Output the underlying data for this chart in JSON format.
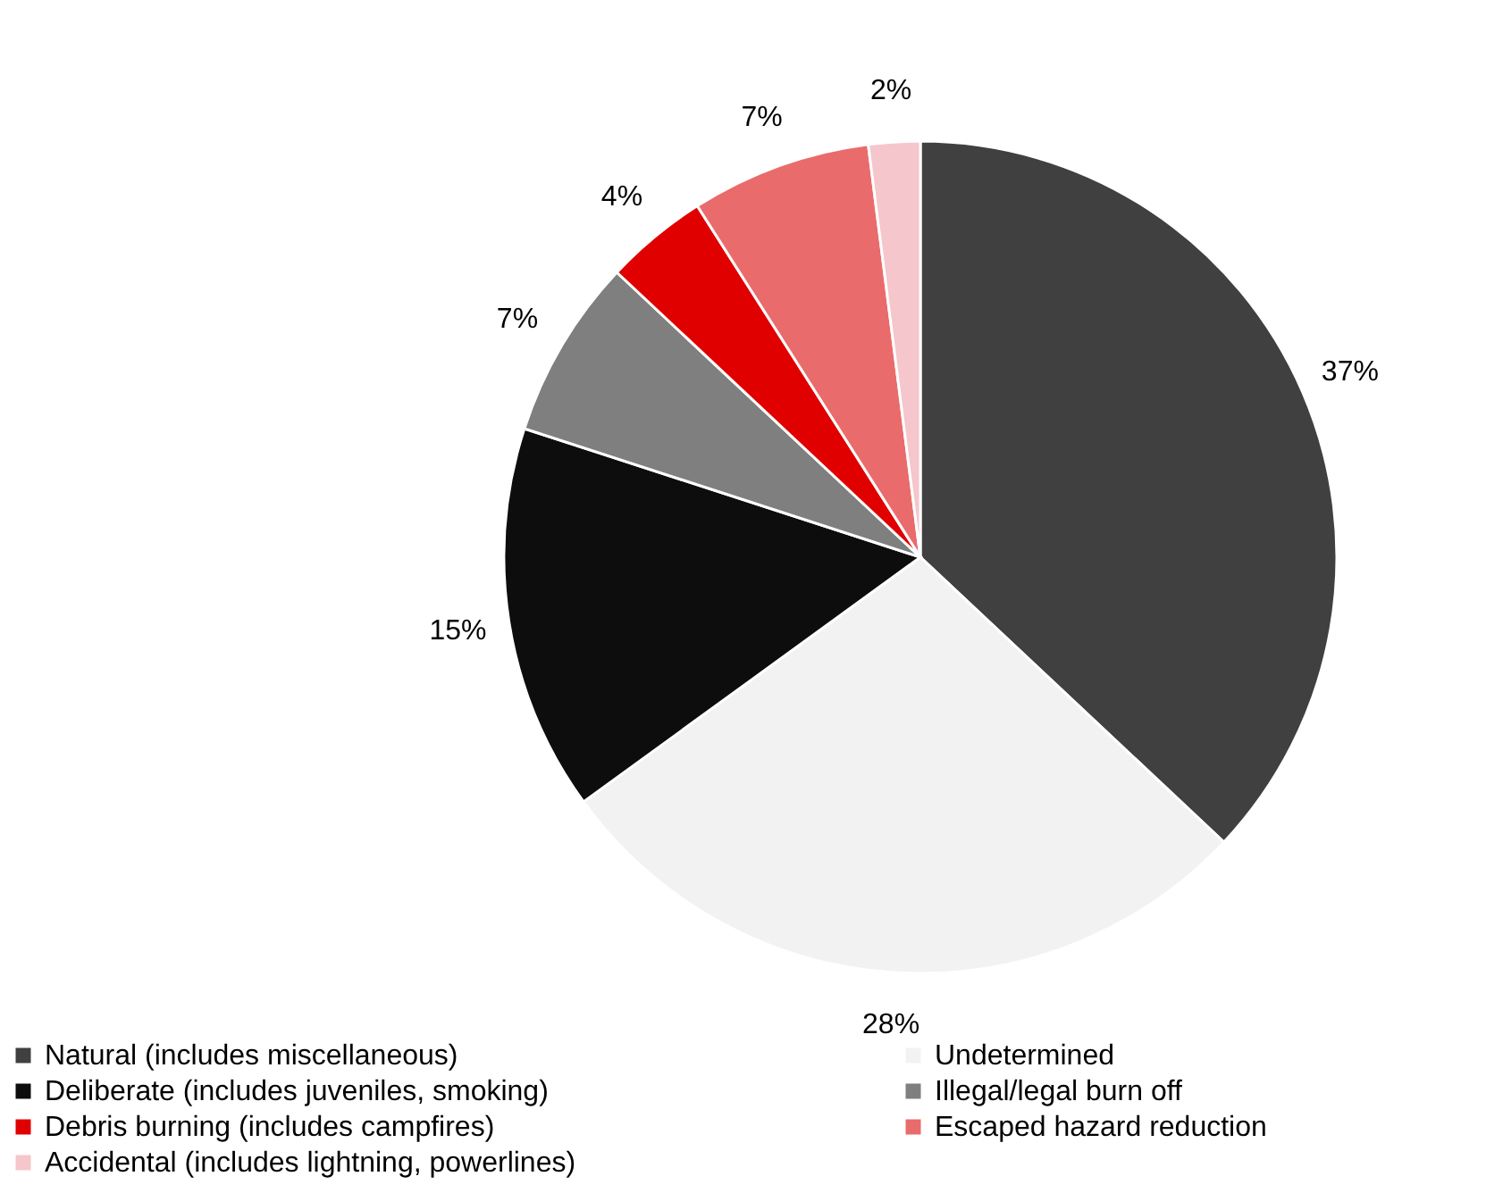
{
  "chart_data": {
    "type": "pie",
    "categories": [
      "Natural (includes miscellaneous)",
      "Undetermined",
      "Deliberate (includes juveniles, smoking)",
      "Illegal/legal burn off",
      "Debris burning (includes campfires)",
      "Escaped hazard reduction",
      "Accidental (includes lightning, powerlines)"
    ],
    "values": [
      37,
      28,
      15,
      7,
      4,
      7,
      2
    ],
    "value_labels": [
      "37%",
      "28%",
      "15%",
      "7%",
      "4%",
      "7%",
      "2%"
    ],
    "colors": [
      "#404040",
      "#f2f2f2",
      "#0d0d0d",
      "#7f7f7f",
      "#e00000",
      "#ea6b6b",
      "#f5c6cb"
    ],
    "legend": "bottom"
  }
}
